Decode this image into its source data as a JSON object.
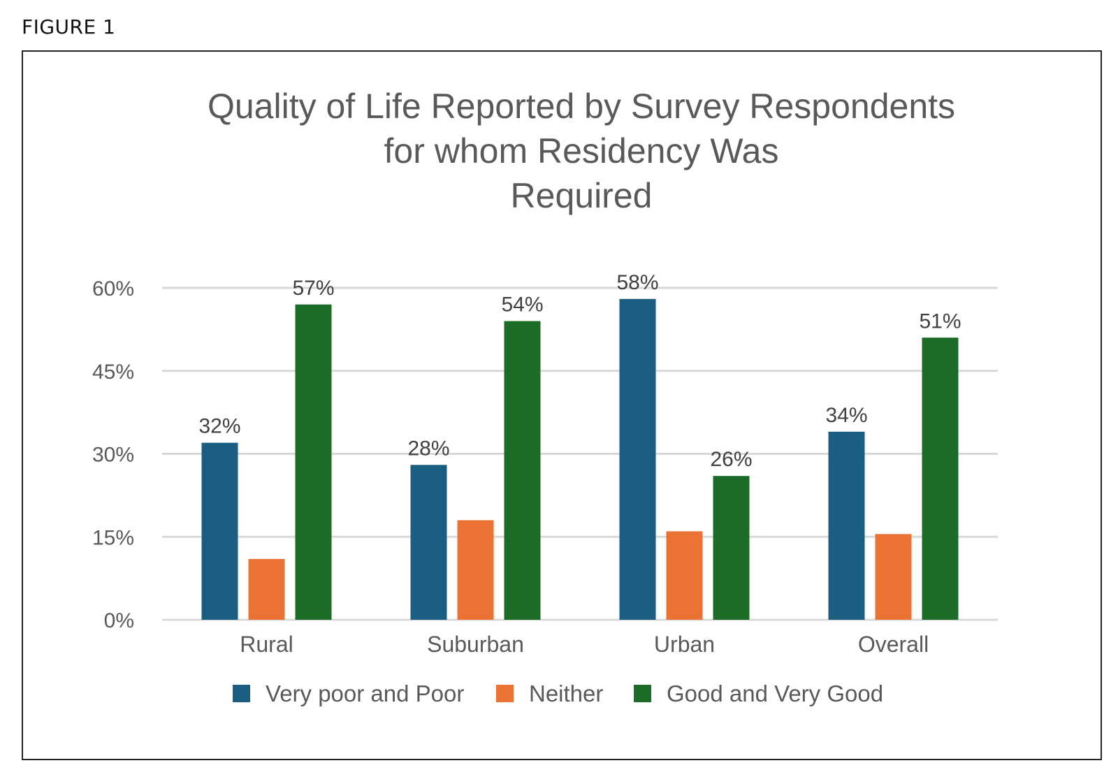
{
  "figure_label": "FIGURE 1",
  "chart_data": {
    "type": "bar",
    "title_lines": [
      "Quality of Life Reported by Survey Respondents",
      "for whom Residency Was",
      "Required"
    ],
    "categories": [
      "Rural",
      "Suburban",
      "Urban",
      "Overall"
    ],
    "series": [
      {
        "name": "Very poor and Poor",
        "color": "#1a5e82",
        "values": [
          32,
          28,
          58,
          34
        ],
        "labels": [
          "32%",
          "28%",
          "58%",
          "34%"
        ]
      },
      {
        "name": "Neither",
        "color": "#ea7334",
        "values": [
          11,
          18,
          16,
          15.5
        ],
        "labels": [
          "",
          "",
          "",
          ""
        ]
      },
      {
        "name": "Good and Very Good",
        "color": "#1c6b26",
        "values": [
          57,
          54,
          26,
          51
        ],
        "labels": [
          "57%",
          "54%",
          "26%",
          "51%"
        ]
      }
    ],
    "y_ticks": [
      0,
      15,
      30,
      45,
      60
    ],
    "y_tick_labels": [
      "0%",
      "15%",
      "30%",
      "45%",
      "60%"
    ],
    "ylim": [
      0,
      60
    ],
    "grid": true,
    "legend_position": "bottom"
  }
}
